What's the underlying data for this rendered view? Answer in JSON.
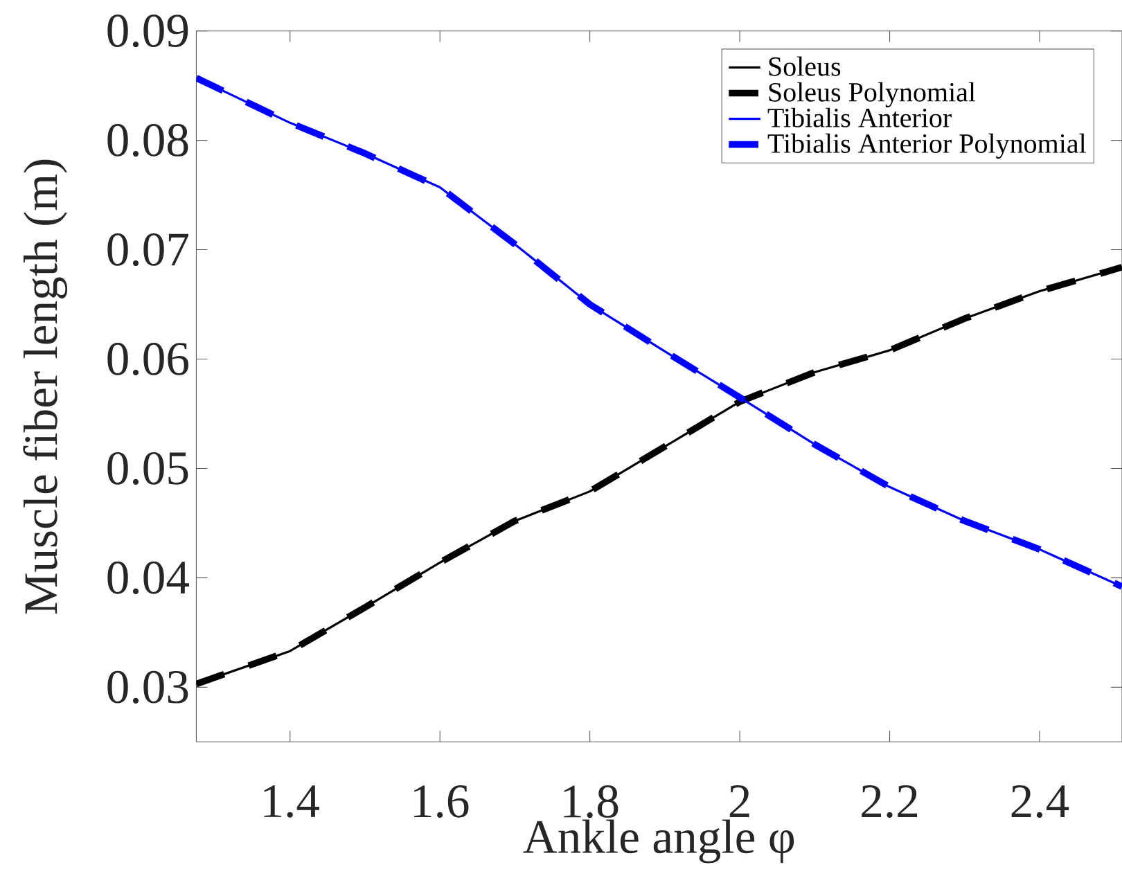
{
  "chart_data": {
    "type": "line",
    "xlabel": "Ankle angle φ",
    "ylabel": "Muscle fiber length (m)",
    "xlim": [
      1.275,
      2.51
    ],
    "ylim": [
      0.025,
      0.09
    ],
    "xticks": [
      1.4,
      1.6,
      1.8,
      2,
      2.2,
      2.4
    ],
    "yticks": [
      0.03,
      0.04,
      0.05,
      0.06,
      0.07,
      0.08,
      0.09
    ],
    "grid": false,
    "legend": "top right",
    "x": [
      1.275,
      1.4,
      1.5,
      1.6,
      1.7,
      1.8,
      1.9,
      2.0,
      2.1,
      2.2,
      2.3,
      2.4,
      2.51
    ],
    "series": [
      {
        "name": "Soleus",
        "color": "#000000",
        "line_style": "solid",
        "values": [
          0.0303,
          0.0333,
          0.0373,
          0.0414,
          0.0452,
          0.0479,
          0.052,
          0.0561,
          0.0588,
          0.0608,
          0.0637,
          0.0662,
          0.0684
        ]
      },
      {
        "name": "Soleus Polynomial",
        "color": "#000000",
        "line_style": "dashed",
        "values": [
          0.0303,
          0.0333,
          0.0373,
          0.0414,
          0.0452,
          0.0479,
          0.052,
          0.0561,
          0.0588,
          0.0608,
          0.0637,
          0.0662,
          0.0684
        ]
      },
      {
        "name": "Tibialis Anterior",
        "color": "#0000ff",
        "line_style": "solid",
        "values": [
          0.0857,
          0.0816,
          0.0788,
          0.0757,
          0.0705,
          0.065,
          0.0607,
          0.0565,
          0.0522,
          0.0483,
          0.0452,
          0.0426,
          0.0392
        ]
      },
      {
        "name": "Tibialis Anterior Polynomial",
        "color": "#0000ff",
        "line_style": "dashed",
        "values": [
          0.0857,
          0.0816,
          0.0788,
          0.0757,
          0.0705,
          0.065,
          0.0607,
          0.0565,
          0.0522,
          0.0483,
          0.0452,
          0.0426,
          0.0392
        ]
      }
    ]
  }
}
